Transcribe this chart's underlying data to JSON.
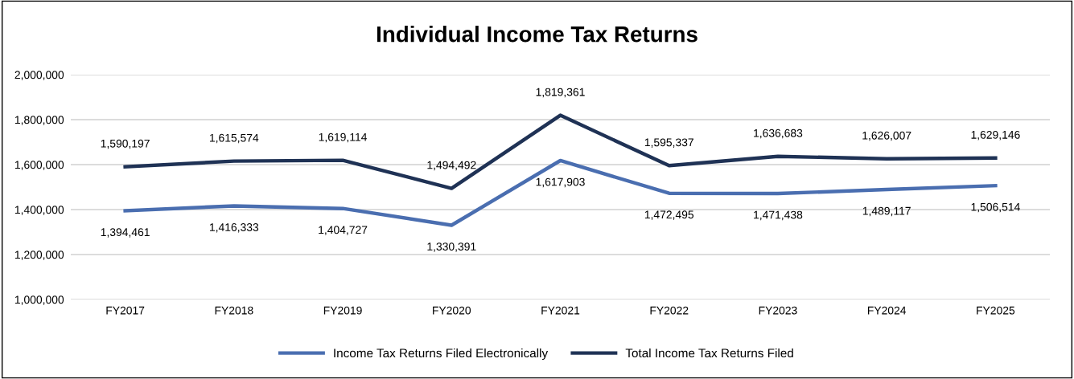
{
  "chart_data": {
    "type": "line",
    "title": "Individual Income Tax Returns",
    "categories": [
      "FY2017",
      "FY2018",
      "FY2019",
      "FY2020",
      "FY2021",
      "FY2022",
      "FY2023",
      "FY2024",
      "FY2025"
    ],
    "series": [
      {
        "name": "Income Tax Returns Filed Electronically",
        "color": "#4a6eb0",
        "values": [
          1394461,
          1416333,
          1404727,
          1330391,
          1617903,
          1472495,
          1471438,
          1489117,
          1506514
        ],
        "value_labels": [
          "1,394,461",
          "1,416,333",
          "1,404,727",
          "1,330,391",
          "1,617,903",
          "1,472,495",
          "1,471,438",
          "1,489,117",
          "1,506,514"
        ]
      },
      {
        "name": "Total Income Tax Returns Filed",
        "color": "#1f3255",
        "values": [
          1590197,
          1615574,
          1619114,
          1494492,
          1819361,
          1595337,
          1636683,
          1626007,
          1629146
        ],
        "value_labels": [
          "1,590,197",
          "1,615,574",
          "1,619,114",
          "1,494,492",
          "1,819,361",
          "1,595,337",
          "1,636,683",
          "1,626,007",
          "1,629,146"
        ]
      }
    ],
    "ylim": [
      1000000,
      2000000
    ],
    "yticks": [
      {
        "value": 1000000,
        "label": "1,000,000"
      },
      {
        "value": 1200000,
        "label": "1,200,000"
      },
      {
        "value": 1400000,
        "label": "1,400,000"
      },
      {
        "value": 1600000,
        "label": "1,600,000"
      },
      {
        "value": 1800000,
        "label": "1,800,000"
      },
      {
        "value": 2000000,
        "label": "2,000,000"
      }
    ],
    "grid": "y",
    "legend": "bottom",
    "marker": "none",
    "line_style": "solid"
  }
}
